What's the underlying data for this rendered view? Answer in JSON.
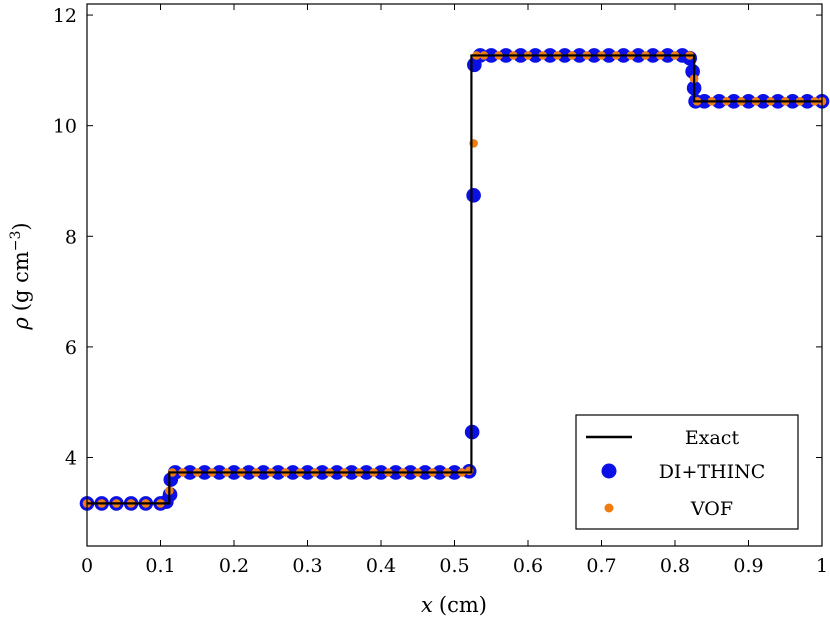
{
  "chart_data": {
    "type": "line",
    "xlabel": {
      "var": "x",
      "unit": "(cm)"
    },
    "ylabel": {
      "var": "ρ",
      "unit_prefix": "(g cm",
      "unit_exp": "−3",
      "unit_suffix": ")"
    },
    "xlim": [
      0,
      1
    ],
    "ylim": [
      2.4,
      12.2
    ],
    "xticks": [
      "0",
      "0.1",
      "0.2",
      "0.3",
      "0.4",
      "0.5",
      "0.6",
      "0.7",
      "0.8",
      "0.9",
      "1"
    ],
    "yticks": [
      "4",
      "6",
      "8",
      "10",
      "12"
    ],
    "legend_position": "bottom-right",
    "series": [
      {
        "name": "Exact",
        "kind": "line",
        "color": "#000000",
        "x": [
          0,
          0.112,
          0.112,
          0.523,
          0.523,
          0.826,
          0.826,
          1.0
        ],
        "y": [
          3.17,
          3.17,
          3.73,
          3.73,
          11.27,
          11.27,
          10.44,
          10.44
        ]
      },
      {
        "name": "DI+THINC",
        "kind": "markers",
        "color": "#0a10e6",
        "x": [
          0.0,
          0.02,
          0.04,
          0.06,
          0.08,
          0.1,
          0.108,
          0.113,
          0.114,
          0.12,
          0.14,
          0.16,
          0.18,
          0.2,
          0.22,
          0.24,
          0.26,
          0.28,
          0.3,
          0.32,
          0.34,
          0.36,
          0.38,
          0.4,
          0.42,
          0.44,
          0.46,
          0.48,
          0.5,
          0.52,
          0.524,
          0.526,
          0.527,
          0.535,
          0.55,
          0.57,
          0.59,
          0.61,
          0.63,
          0.65,
          0.67,
          0.69,
          0.71,
          0.73,
          0.75,
          0.77,
          0.79,
          0.81,
          0.82,
          0.824,
          0.826,
          0.828,
          0.84,
          0.86,
          0.88,
          0.9,
          0.92,
          0.94,
          0.96,
          0.98,
          1.0
        ],
        "y": [
          3.17,
          3.17,
          3.17,
          3.17,
          3.17,
          3.17,
          3.2,
          3.33,
          3.6,
          3.73,
          3.73,
          3.73,
          3.73,
          3.73,
          3.73,
          3.73,
          3.73,
          3.73,
          3.73,
          3.73,
          3.73,
          3.73,
          3.73,
          3.73,
          3.73,
          3.73,
          3.73,
          3.73,
          3.73,
          3.75,
          4.46,
          8.74,
          11.1,
          11.27,
          11.27,
          11.27,
          11.27,
          11.27,
          11.27,
          11.27,
          11.27,
          11.27,
          11.27,
          11.27,
          11.27,
          11.27,
          11.27,
          11.27,
          11.22,
          10.98,
          10.68,
          10.44,
          10.44,
          10.44,
          10.44,
          10.44,
          10.44,
          10.44,
          10.44,
          10.44,
          10.44
        ]
      },
      {
        "name": "VOF",
        "kind": "markers",
        "color": "#f07c10",
        "x": [
          0.0,
          0.02,
          0.04,
          0.06,
          0.08,
          0.1,
          0.112,
          0.116,
          0.13,
          0.15,
          0.17,
          0.19,
          0.21,
          0.23,
          0.25,
          0.27,
          0.29,
          0.31,
          0.33,
          0.35,
          0.37,
          0.39,
          0.41,
          0.43,
          0.45,
          0.47,
          0.49,
          0.51,
          0.52,
          0.526,
          0.53,
          0.54,
          0.56,
          0.58,
          0.6,
          0.62,
          0.64,
          0.66,
          0.68,
          0.7,
          0.72,
          0.74,
          0.76,
          0.78,
          0.8,
          0.82,
          0.826,
          0.83,
          0.85,
          0.87,
          0.89,
          0.91,
          0.93,
          0.95,
          0.97,
          0.99,
          1.0
        ],
        "y": [
          3.17,
          3.17,
          3.17,
          3.17,
          3.17,
          3.17,
          3.4,
          3.73,
          3.73,
          3.73,
          3.73,
          3.73,
          3.73,
          3.73,
          3.73,
          3.73,
          3.73,
          3.73,
          3.73,
          3.73,
          3.73,
          3.73,
          3.73,
          3.73,
          3.73,
          3.73,
          3.73,
          3.73,
          3.76,
          9.68,
          11.27,
          11.27,
          11.27,
          11.27,
          11.27,
          11.27,
          11.27,
          11.27,
          11.27,
          11.27,
          11.27,
          11.27,
          11.27,
          11.27,
          11.27,
          11.27,
          10.85,
          10.44,
          10.44,
          10.44,
          10.44,
          10.44,
          10.44,
          10.44,
          10.44,
          10.44,
          10.44
        ]
      }
    ]
  }
}
